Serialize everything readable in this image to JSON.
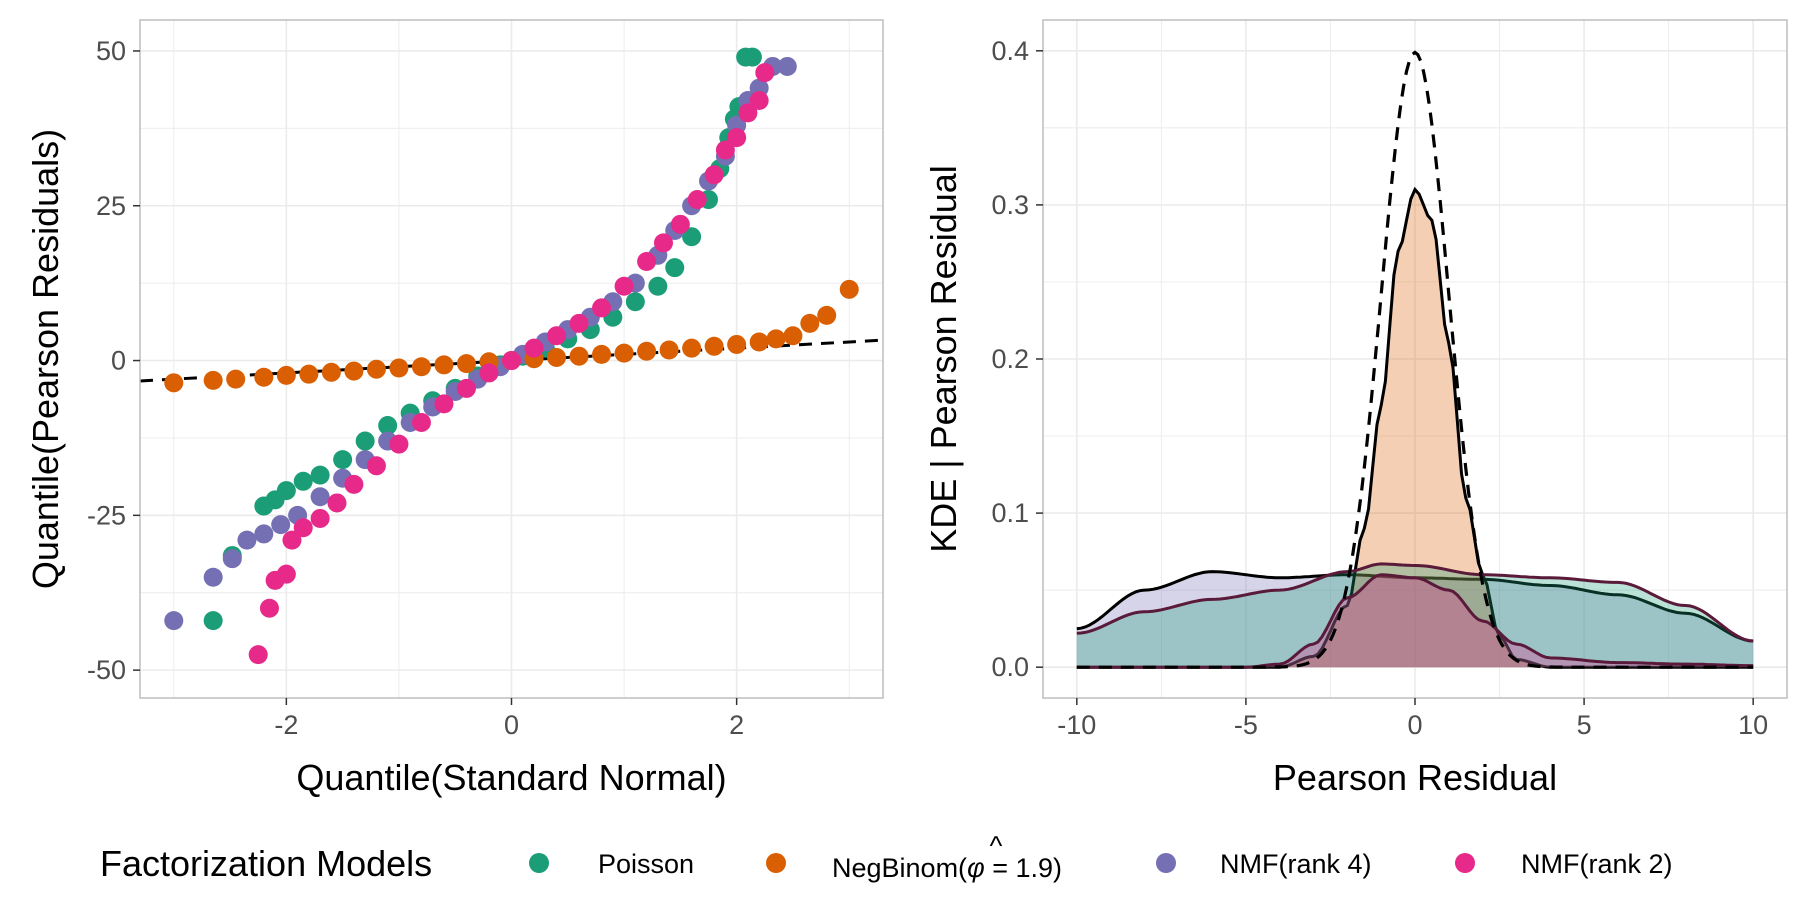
{
  "colors": {
    "poisson": "#1b9e77",
    "negbinom": "#d95f02",
    "nmf4": "#7570b3",
    "nmf2": "#e7298a",
    "grid": "#ebebeb",
    "panel_border": "#bdbdbd",
    "reference": "#000000"
  },
  "legend": {
    "title": "Factorization Models",
    "items": [
      {
        "key": "poisson",
        "label": "Poisson"
      },
      {
        "key": "negbinom",
        "label": "NegBinom(φ̂ = 1.9)",
        "label_prefix": "NegBinom(",
        "label_symbol": "φ",
        "label_hat": "^",
        "label_suffix": " = 1.9)"
      },
      {
        "key": "nmf4",
        "label": "NMF(rank 4)"
      },
      {
        "key": "nmf2",
        "label": "NMF(rank 2)"
      }
    ]
  },
  "chart_data": [
    {
      "type": "scatter",
      "title": "",
      "xlabel": "Quantile(Standard Normal)",
      "ylabel": "Quantile(Pearson Residuals)",
      "xlim": [
        -3.3,
        3.3
      ],
      "ylim": [
        -54.5,
        55
      ],
      "x_ticks": [
        -2,
        0,
        2
      ],
      "x_tick_labels": [
        "-2",
        "0",
        "2"
      ],
      "y_ticks": [
        -50,
        -25,
        0,
        25,
        50
      ],
      "y_tick_labels": [
        "-50",
        "-25",
        "0",
        "25",
        "50"
      ],
      "grid": true,
      "reference_line": {
        "style": "dashed",
        "x": [
          -3.3,
          3.3
        ],
        "y": [
          -3.3,
          3.3
        ]
      },
      "series": [
        {
          "key": "poisson",
          "name": "Poisson",
          "points": [
            [
              -2.65,
              -42
            ],
            [
              -2.48,
              -31.5
            ],
            [
              -2.2,
              -23.5
            ],
            [
              -2.1,
              -22.5
            ],
            [
              -2.0,
              -21
            ],
            [
              -1.85,
              -19.5
            ],
            [
              -1.7,
              -18.5
            ],
            [
              -1.5,
              -16
            ],
            [
              -1.3,
              -13
            ],
            [
              -1.1,
              -10.5
            ],
            [
              -0.9,
              -8.5
            ],
            [
              -0.7,
              -6.5
            ],
            [
              -0.5,
              -4.5
            ],
            [
              -0.3,
              -2.5
            ],
            [
              -0.1,
              -0.7
            ],
            [
              0.1,
              0.7
            ],
            [
              0.3,
              2
            ],
            [
              0.5,
              3.5
            ],
            [
              0.7,
              5
            ],
            [
              0.9,
              7
            ],
            [
              1.1,
              9.5
            ],
            [
              1.3,
              12
            ],
            [
              1.45,
              15
            ],
            [
              1.6,
              20
            ],
            [
              1.75,
              26
            ],
            [
              1.85,
              31
            ],
            [
              1.93,
              36
            ],
            [
              1.98,
              39
            ],
            [
              2.02,
              41
            ],
            [
              2.08,
              49
            ],
            [
              2.14,
              49
            ]
          ]
        },
        {
          "key": "negbinom",
          "name": "NegBinom(φ̂ = 1.9)",
          "points": [
            [
              -3.0,
              -3.6
            ],
            [
              -2.65,
              -3.2
            ],
            [
              -2.45,
              -3.0
            ],
            [
              -2.2,
              -2.7
            ],
            [
              -2.0,
              -2.4
            ],
            [
              -1.8,
              -2.2
            ],
            [
              -1.6,
              -1.9
            ],
            [
              -1.4,
              -1.7
            ],
            [
              -1.2,
              -1.4
            ],
            [
              -1.0,
              -1.2
            ],
            [
              -0.8,
              -1.0
            ],
            [
              -0.6,
              -0.7
            ],
            [
              -0.4,
              -0.5
            ],
            [
              -0.2,
              -0.2
            ],
            [
              0.0,
              0.0
            ],
            [
              0.2,
              0.3
            ],
            [
              0.4,
              0.5
            ],
            [
              0.6,
              0.7
            ],
            [
              0.8,
              1.0
            ],
            [
              1.0,
              1.2
            ],
            [
              1.2,
              1.5
            ],
            [
              1.4,
              1.7
            ],
            [
              1.6,
              2.0
            ],
            [
              1.8,
              2.3
            ],
            [
              2.0,
              2.6
            ],
            [
              2.2,
              3.0
            ],
            [
              2.35,
              3.5
            ],
            [
              2.5,
              4.0
            ],
            [
              2.65,
              6.0
            ],
            [
              2.8,
              7.3
            ],
            [
              3.0,
              11.5
            ]
          ]
        },
        {
          "key": "nmf4",
          "name": "NMF(rank 4)",
          "points": [
            [
              -3.0,
              -42
            ],
            [
              -2.65,
              -35
            ],
            [
              -2.48,
              -32
            ],
            [
              -2.35,
              -29
            ],
            [
              -2.2,
              -28
            ],
            [
              -2.05,
              -26.5
            ],
            [
              -1.9,
              -25
            ],
            [
              -1.7,
              -22
            ],
            [
              -1.5,
              -19
            ],
            [
              -1.3,
              -16
            ],
            [
              -1.1,
              -13
            ],
            [
              -0.9,
              -10
            ],
            [
              -0.7,
              -7.5
            ],
            [
              -0.5,
              -5
            ],
            [
              -0.3,
              -3
            ],
            [
              -0.1,
              -1
            ],
            [
              0.1,
              1
            ],
            [
              0.3,
              3
            ],
            [
              0.5,
              5
            ],
            [
              0.7,
              7
            ],
            [
              0.9,
              9.5
            ],
            [
              1.1,
              12.5
            ],
            [
              1.3,
              17
            ],
            [
              1.45,
              21
            ],
            [
              1.6,
              25
            ],
            [
              1.75,
              29
            ],
            [
              1.9,
              33
            ],
            [
              2.0,
              38
            ],
            [
              2.1,
              42
            ],
            [
              2.2,
              44
            ],
            [
              2.32,
              47.5
            ],
            [
              2.45,
              47.5
            ]
          ]
        },
        {
          "key": "nmf2",
          "name": "NMF(rank 2)",
          "points": [
            [
              -2.25,
              -47.5
            ],
            [
              -2.15,
              -40
            ],
            [
              -2.1,
              -35.5
            ],
            [
              -2.0,
              -34.5
            ],
            [
              -1.95,
              -29
            ],
            [
              -1.85,
              -27
            ],
            [
              -1.7,
              -25.5
            ],
            [
              -1.55,
              -23
            ],
            [
              -1.4,
              -20
            ],
            [
              -1.2,
              -17
            ],
            [
              -1.0,
              -13.5
            ],
            [
              -0.8,
              -10
            ],
            [
              -0.6,
              -7
            ],
            [
              -0.4,
              -4.5
            ],
            [
              -0.2,
              -2
            ],
            [
              0.0,
              0
            ],
            [
              0.2,
              2
            ],
            [
              0.4,
              4
            ],
            [
              0.6,
              6
            ],
            [
              0.8,
              8.5
            ],
            [
              1.0,
              12
            ],
            [
              1.2,
              16
            ],
            [
              1.35,
              19
            ],
            [
              1.5,
              22
            ],
            [
              1.65,
              26
            ],
            [
              1.8,
              30
            ],
            [
              1.9,
              34
            ],
            [
              2.0,
              36
            ],
            [
              2.1,
              40
            ],
            [
              2.2,
              42
            ],
            [
              2.25,
              46.5
            ]
          ]
        }
      ]
    },
    {
      "type": "area",
      "title": "",
      "xlabel": "Pearson Residual",
      "ylabel": "KDE | Pearson Residual",
      "xlim": [
        -11.0,
        11.0
      ],
      "ylim": [
        -0.02,
        0.42
      ],
      "x_ticks": [
        -10,
        -5,
        0,
        5,
        10
      ],
      "x_tick_labels": [
        "-10",
        "-5",
        "0",
        "5",
        "10"
      ],
      "y_ticks": [
        0.0,
        0.1,
        0.2,
        0.3,
        0.4
      ],
      "y_tick_labels": [
        "0.0",
        "0.1",
        "0.2",
        "0.3",
        "0.4"
      ],
      "grid": true,
      "reference_density": {
        "style": "dashed",
        "distribution": "standard normal"
      },
      "series": [
        {
          "key": "nmf4",
          "name": "NMF(rank 4)",
          "fill_opacity": 0.3,
          "stroke": "#000000",
          "x": [
            -10,
            -8,
            -6,
            -4,
            -2,
            0,
            2,
            4,
            6,
            8,
            10
          ],
          "y": [
            0.025,
            0.05,
            0.062,
            0.058,
            0.06,
            0.058,
            0.057,
            0.053,
            0.047,
            0.035,
            0.017
          ]
        },
        {
          "key": "negbinom",
          "name": "NegBinom(φ̂ = 1.9)",
          "fill_opacity": 0.3,
          "stroke": "#000000",
          "x": [
            -10,
            -4,
            -3,
            -2,
            -1.5,
            -1,
            -0.5,
            0,
            0.5,
            1,
            1.5,
            2,
            2.5,
            3,
            4,
            10
          ],
          "y": [
            0.0,
            0.0,
            0.007,
            0.04,
            0.09,
            0.17,
            0.27,
            0.31,
            0.29,
            0.21,
            0.11,
            0.06,
            0.02,
            0.005,
            0.0,
            0.0
          ]
        },
        {
          "key": "poisson",
          "name": "Poisson",
          "fill_opacity": 0.3,
          "stroke": "#5a1a3a",
          "x": [
            -10,
            -8,
            -6,
            -4,
            -2,
            -1,
            0,
            2,
            4,
            6,
            8,
            10
          ],
          "y": [
            0.022,
            0.036,
            0.044,
            0.05,
            0.062,
            0.067,
            0.066,
            0.06,
            0.058,
            0.055,
            0.04,
            0.017
          ]
        },
        {
          "key": "nmf2",
          "name": "NMF(rank 2)",
          "fill_opacity": 0.3,
          "stroke": "#5a1a3a",
          "x": [
            -10,
            -5,
            -4,
            -3,
            -2,
            -1,
            0,
            1,
            2,
            3,
            4,
            6,
            8,
            10
          ],
          "y": [
            0.0,
            0.0,
            0.002,
            0.015,
            0.045,
            0.06,
            0.058,
            0.05,
            0.03,
            0.015,
            0.006,
            0.003,
            0.002,
            0.001
          ]
        }
      ]
    }
  ]
}
